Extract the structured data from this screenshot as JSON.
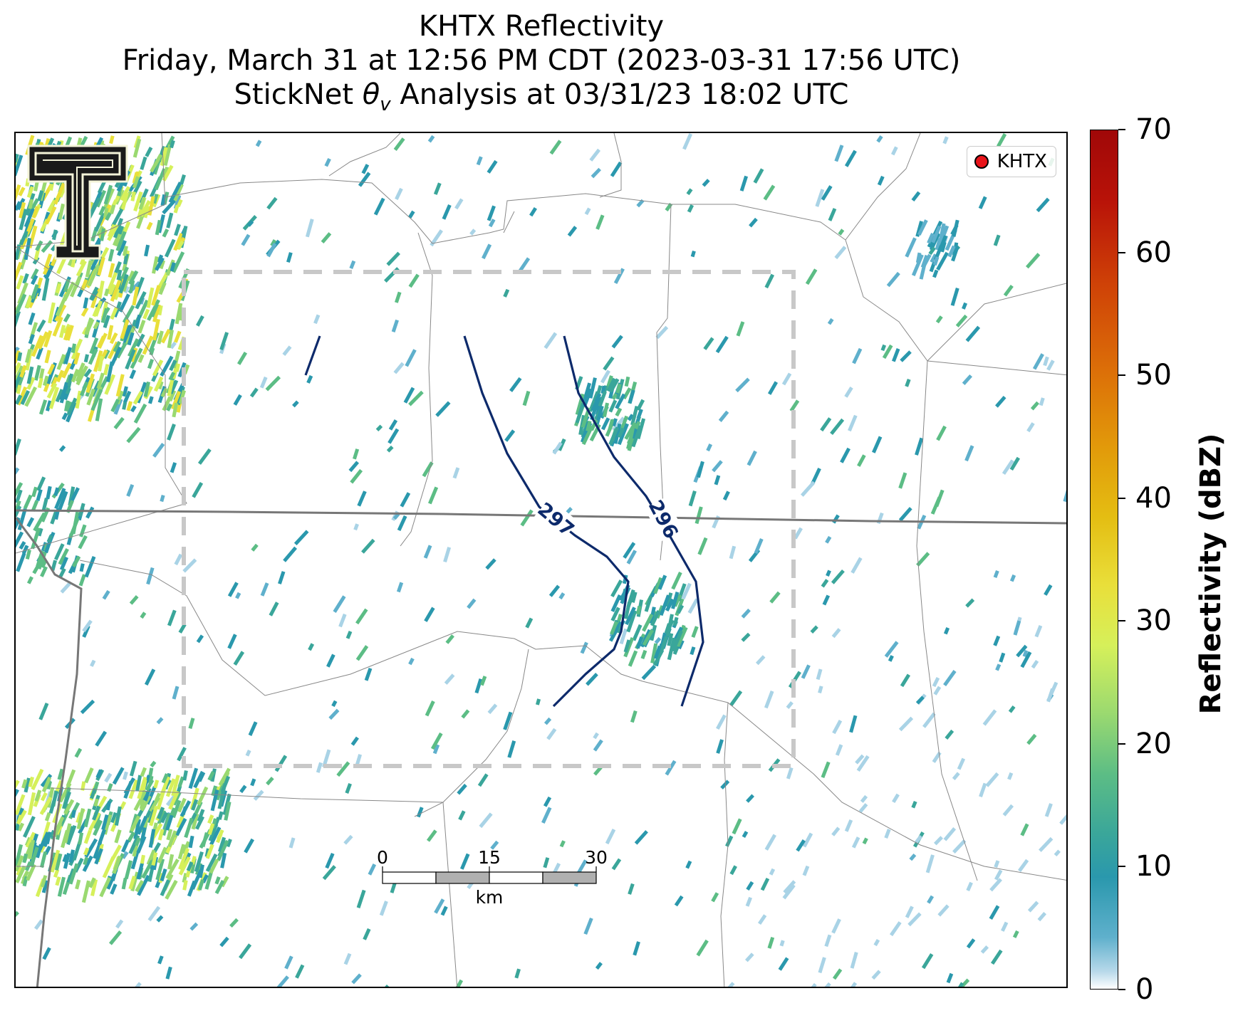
{
  "title": {
    "line1": "KHTX Reflectivity",
    "line2": "Friday, March 31 at 12:56 PM CDT (2023-03-31 17:56 UTC)",
    "line3_pre": "StickNet ",
    "line3_symbol": "θ",
    "line3_sub": "v",
    "line3_post": " Analysis at 03/31/23 18:02 UTC"
  },
  "legend": {
    "label": "KHTX",
    "marker_color": "#e8141a"
  },
  "contours": [
    {
      "label": "297",
      "color": "#0d2a6b"
    },
    {
      "label": "296",
      "color": "#0d2a6b"
    }
  ],
  "scalebar": {
    "ticks": [
      "0",
      "15",
      "30"
    ],
    "unit": "km"
  },
  "colorbar": {
    "title": "Reflectivity (dBZ)",
    "ticks": [
      "0",
      "10",
      "20",
      "30",
      "40",
      "50",
      "60",
      "70"
    ],
    "range": [
      0,
      70
    ]
  },
  "logo": {
    "name": "Texas Tech double-T"
  }
}
